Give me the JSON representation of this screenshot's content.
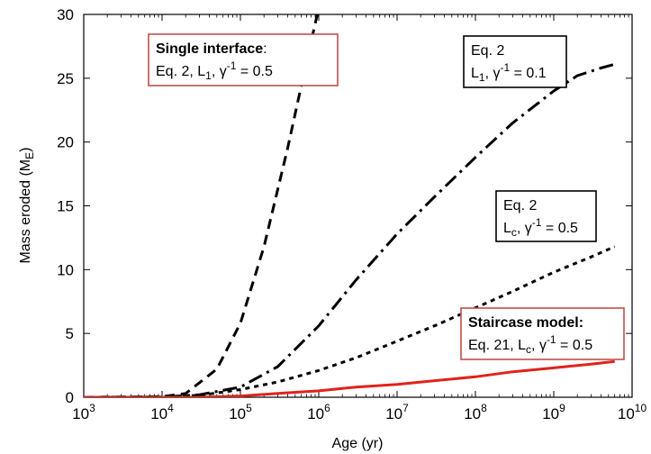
{
  "chart_data": {
    "type": "line",
    "xlabel": "Age (yr)",
    "ylabel": "Mass eroded (M",
    "ylabel_sub": "E",
    "ylabel_close": ")",
    "x_scale": "log",
    "xlim": [
      1000,
      10000000000
    ],
    "ylim": [
      0,
      30
    ],
    "x_tick_labels": [
      {
        "base": "10",
        "exp": "3"
      },
      {
        "base": "10",
        "exp": "4"
      },
      {
        "base": "10",
        "exp": "5"
      },
      {
        "base": "10",
        "exp": "6"
      },
      {
        "base": "10",
        "exp": "7"
      },
      {
        "base": "10",
        "exp": "8"
      },
      {
        "base": "10",
        "exp": "9"
      },
      {
        "base": "10",
        "exp": "10"
      }
    ],
    "y_tick_labels": [
      "0",
      "5",
      "10",
      "15",
      "20",
      "25",
      "30"
    ],
    "grid": false,
    "series": [
      {
        "style": "dashed",
        "color": "#000000",
        "x": [
          1000,
          10000,
          20000,
          50000,
          100000,
          200000,
          400000,
          700000,
          1000000,
          1200000
        ],
        "y": [
          0,
          0.05,
          0.3,
          2.2,
          5.8,
          11.8,
          19.5,
          26.3,
          30.5,
          32.5
        ]
      },
      {
        "style": "dash-dot",
        "color": "#000000",
        "x": [
          1000,
          10000,
          30000,
          100000,
          300000,
          1000000,
          3000000,
          10000000,
          30000000,
          100000000,
          300000000,
          1000000000,
          2000000000,
          4000000000,
          6000000000
        ],
        "y": [
          0,
          0.02,
          0.2,
          0.8,
          2.4,
          5.6,
          9.2,
          12.8,
          15.7,
          18.8,
          21.5,
          24,
          25.2,
          25.8,
          26.1
        ]
      },
      {
        "style": "dotted",
        "color": "#000000",
        "x": [
          1000,
          10000,
          30000,
          100000,
          300000,
          1000000,
          3000000,
          10000000,
          30000000,
          100000000,
          300000000,
          1000000000,
          3000000000,
          6000000000
        ],
        "y": [
          0,
          0.02,
          0.15,
          0.6,
          1.2,
          2.1,
          3.1,
          4.4,
          5.6,
          7.0,
          8.3,
          9.8,
          11.0,
          11.8
        ]
      },
      {
        "style": "solid",
        "color": "#e0231c",
        "x": [
          1000,
          10000,
          30000,
          100000,
          300000,
          1000000,
          3000000,
          10000000,
          30000000,
          100000000,
          300000000,
          1000000000,
          3000000000,
          6000000000
        ],
        "y": [
          0,
          0,
          0,
          0.1,
          0.3,
          0.5,
          0.8,
          1.0,
          1.3,
          1.6,
          2.0,
          2.3,
          2.6,
          2.8
        ]
      }
    ],
    "annotations": [
      {
        "id": "single",
        "border": "#c0504d",
        "lines": [
          [
            {
              "t": "Single interface",
              "bold": true
            },
            {
              "t": ":"
            }
          ],
          [
            {
              "t": "Eq. 2,  L"
            },
            {
              "t": "1",
              "sub": true
            },
            {
              "t": ", γ"
            },
            {
              "t": "-1",
              "sup": true
            },
            {
              "t": " = 0.5"
            }
          ]
        ]
      },
      {
        "id": "eq2-l1",
        "border": "#000000",
        "lines": [
          [
            {
              "t": "Eq. 2"
            }
          ],
          [
            {
              "t": "L"
            },
            {
              "t": "1",
              "sub": true
            },
            {
              "t": ", γ"
            },
            {
              "t": "-1",
              "sup": true
            },
            {
              "t": " = 0.1"
            }
          ]
        ]
      },
      {
        "id": "eq2-lc",
        "border": "#000000",
        "lines": [
          [
            {
              "t": "Eq. 2"
            }
          ],
          [
            {
              "t": "L"
            },
            {
              "t": "c",
              "sub": true
            },
            {
              "t": ", γ"
            },
            {
              "t": "-1",
              "sup": true
            },
            {
              "t": " = 0.5"
            }
          ]
        ]
      },
      {
        "id": "staircase",
        "border": "#c0504d",
        "lines": [
          [
            {
              "t": "Staircase model:",
              "bold": true
            }
          ],
          [
            {
              "t": "Eq. 21,  L"
            },
            {
              "t": "c",
              "sub": true
            },
            {
              "t": ", γ"
            },
            {
              "t": "-1",
              "sup": true
            },
            {
              "t": " = 0.5"
            }
          ]
        ]
      }
    ]
  }
}
